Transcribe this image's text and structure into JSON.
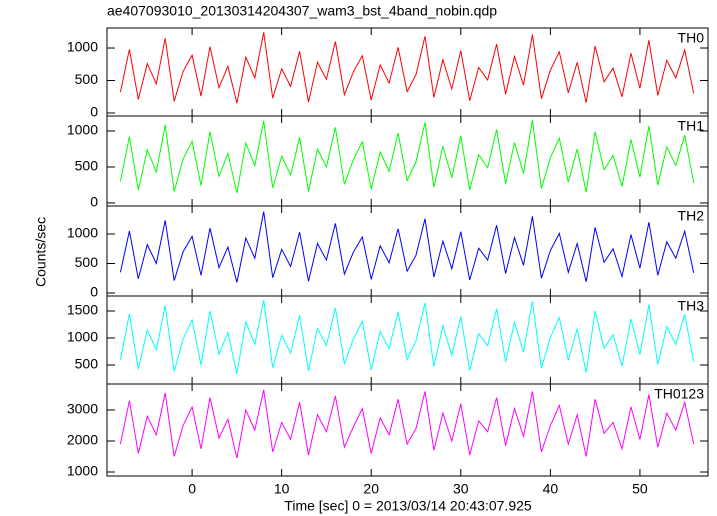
{
  "chart_data": {
    "type": "stacked_line",
    "title": "ae407093010_20130314204307_wam3_bst_4band_nobin.qdp",
    "x_label": "Time [sec] 0 = 2013/03/14 20:43:07.925",
    "y_label": "Counts/sec",
    "x": [
      -8,
      -7,
      -6,
      -5,
      -4,
      -3,
      -2,
      -1,
      0,
      1,
      2,
      3,
      4,
      5,
      6,
      7,
      8,
      9,
      10,
      11,
      12,
      13,
      14,
      15,
      16,
      17,
      18,
      19,
      20,
      21,
      22,
      23,
      24,
      25,
      26,
      27,
      28,
      29,
      30,
      31,
      32,
      33,
      34,
      35,
      36,
      37,
      38,
      39,
      40,
      41,
      42,
      43,
      44,
      45,
      46,
      47,
      48,
      49,
      50,
      51,
      52,
      53,
      54,
      55,
      56
    ],
    "xlim": [
      -9.5,
      57.6
    ],
    "xticks": [
      0,
      10,
      20,
      30,
      40,
      50
    ],
    "panels": [
      {
        "series": [
          {
            "name": "TH0",
            "color": "#ff0000",
            "values": [
              320,
              980,
              210,
              760,
              450,
              1150,
              180,
              640,
              890,
              260,
              1020,
              390,
              720,
              150,
              860,
              540,
              1240,
              230,
              680,
              410,
              950,
              170,
              780,
              520,
              1100,
              280,
              630,
              880,
              200,
              740,
              460,
              1010,
              330,
              590,
              1180,
              240,
              820,
              370,
              960,
              190,
              700,
              510,
              1060,
              290,
              870,
              430,
              1210,
              220,
              660,
              940,
              310,
              780,
              160,
              1030,
              480,
              690,
              250,
              920,
              380,
              1120,
              270,
              810,
              540,
              970,
              300
            ]
          }
        ],
        "ylim": [
          -46,
          1308
        ],
        "yticks": [
          0,
          500,
          1000
        ]
      },
      {
        "series": [
          {
            "name": "TH1",
            "color": "#00ff00",
            "values": [
              300,
              920,
              180,
              740,
              430,
              1080,
              160,
              610,
              860,
              240,
              990,
              370,
              690,
              140,
              830,
              520,
              1140,
              210,
              650,
              390,
              910,
              160,
              750,
              500,
              1050,
              260,
              600,
              850,
              190,
              710,
              440,
              970,
              310,
              570,
              1120,
              220,
              790,
              350,
              930,
              180,
              670,
              490,
              1020,
              270,
              840,
              410,
              1150,
              200,
              630,
              900,
              290,
              750,
              150,
              990,
              460,
              660,
              230,
              880,
              360,
              1070,
              250,
              780,
              520,
              940,
              280
            ]
          }
        ],
        "ylim": [
          -42,
          1208
        ],
        "yticks": [
          0,
          500,
          1000
        ]
      },
      {
        "series": [
          {
            "name": "TH2",
            "color": "#0000ff",
            "values": [
              350,
              1050,
              240,
              820,
              500,
              1230,
              210,
              700,
              960,
              300,
              1100,
              430,
              780,
              180,
              930,
              590,
              1380,
              260,
              740,
              450,
              1030,
              200,
              840,
              560,
              1180,
              320,
              690,
              950,
              230,
              800,
              510,
              1090,
              370,
              640,
              1260,
              270,
              880,
              410,
              1040,
              220,
              760,
              560,
              1150,
              330,
              940,
              470,
              1300,
              250,
              720,
              1010,
              350,
              840,
              190,
              1110,
              520,
              750,
              280,
              990,
              420,
              1200,
              300,
              870,
              590,
              1050,
              340
            ]
          }
        ],
        "ylim": [
          -51,
          1475
        ],
        "yticks": [
          0,
          500,
          1000
        ]
      },
      {
        "series": [
          {
            "name": "TH3",
            "color": "#00ffff",
            "values": [
              600,
              1450,
              420,
              1150,
              780,
              1600,
              380,
              980,
              1330,
              500,
              1500,
              700,
              1100,
              340,
              1300,
              880,
              1700,
              450,
              1050,
              720,
              1420,
              390,
              1180,
              860,
              1560,
              520,
              980,
              1310,
              410,
              1120,
              800,
              1480,
              600,
              950,
              1650,
              470,
              1230,
              680,
              1400,
              400,
              1080,
              860,
              1540,
              560,
              1290,
              740,
              1680,
              440,
              1010,
              1380,
              590,
              1170,
              360,
              1500,
              810,
              1060,
              480,
              1350,
              690,
              1620,
              510,
              1210,
              880,
              1440,
              560
            ]
          }
        ],
        "ylim": [
          148,
          1778
        ],
        "yticks": [
          500,
          1000,
          1500
        ]
      },
      {
        "series": [
          {
            "name": "TH0123",
            "color": "#ff00ff",
            "values": [
              1900,
              3300,
              1600,
              2800,
              2200,
              3550,
              1500,
              2500,
              3100,
              1750,
              3400,
              2100,
              2700,
              1450,
              3000,
              2350,
              3650,
              1650,
              2600,
              2050,
              3250,
              1550,
              2850,
              2300,
              3450,
              1800,
              2450,
              3050,
              1600,
              2750,
              2200,
              3350,
              1900,
              2400,
              3600,
              1700,
              2900,
              2000,
              3200,
              1550,
              2650,
              2300,
              3400,
              1850,
              3050,
              2150,
              3600,
              1650,
              2500,
              3150,
              1900,
              2850,
              1500,
              3350,
              2250,
              2600,
              1750,
              3100,
              2050,
              3500,
              1800,
              2900,
              2350,
              3250,
              1900
            ]
          }
        ],
        "ylim": [
          871,
          3839
        ],
        "yticks": [
          1000,
          2000,
          3000
        ]
      }
    ]
  }
}
